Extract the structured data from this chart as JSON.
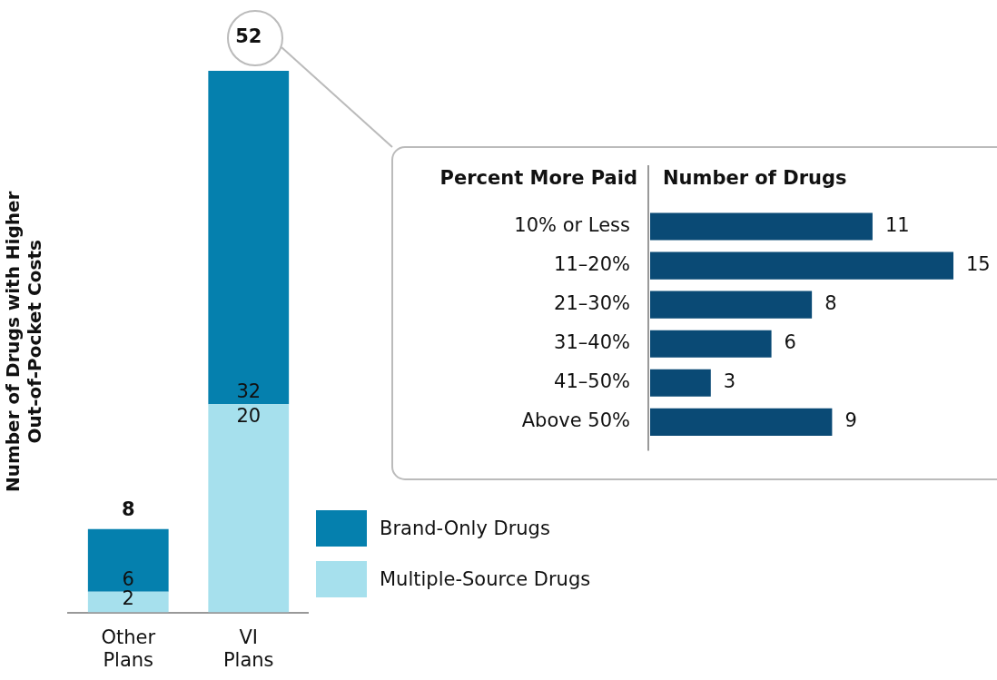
{
  "chart_data": [
    {
      "type": "bar",
      "ylabel": "Number of Drugs with Higher\nOut-of-Pocket Costs",
      "categories": [
        "Other\nPlans",
        "VI\nPlans"
      ],
      "stacked": true,
      "series": [
        {
          "name": "Multiple-Source Drugs",
          "color": "#a6e0ed",
          "values": [
            2,
            20
          ]
        },
        {
          "name": "Brand-Only Drugs",
          "color": "#0580ae",
          "values": [
            6,
            32
          ]
        }
      ],
      "data_labels": true,
      "totals": [
        "8",
        "52"
      ],
      "legend": "right",
      "tick_labels": "x"
    },
    {
      "type": "bar",
      "orientation": "horizontal",
      "ylabel": "Percent More Paid",
      "xlabel": "Number of Drugs",
      "categories": [
        "10% or Less",
        "11–20%",
        "21–30%",
        "31–40%",
        "41–50%",
        "Above 50%"
      ],
      "values": [
        11,
        15,
        8,
        6,
        3,
        9
      ],
      "color": "#0a4a75",
      "data_labels": true,
      "tick_labels": "y"
    }
  ]
}
